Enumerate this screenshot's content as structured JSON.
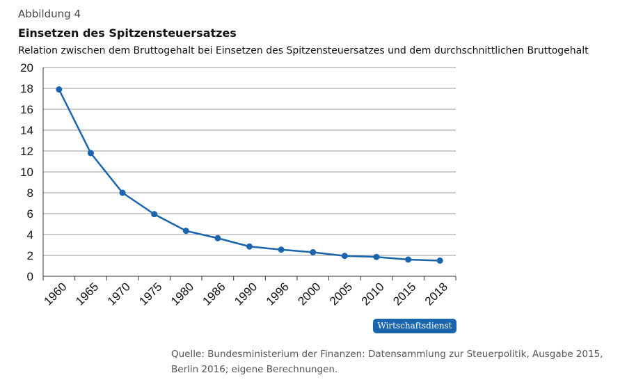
{
  "header": {
    "figure_label": "Abbildung 4",
    "title": "Einsetzen des Spitzensteuersatzes",
    "subtitle": "Relation zwischen dem Bruttogehalt bei Einsetzen des Spitzensteuersatzes und dem durchschnittlichen Bruttogehalt"
  },
  "badge": {
    "label": "Wirtschaftsdienst"
  },
  "source": {
    "text": "Quelle: Bundesministerium der Finanzen: Datensammlung zur Steuerpolitik, Ausgabe 2015, Berlin 2016; eigene Berechnungen."
  },
  "colors": {
    "line": "#1a65ad",
    "grid": "#999999",
    "badge": "#1a65ad"
  },
  "chart_data": {
    "type": "line",
    "title": "Einsetzen des Spitzensteuersatzes",
    "xlabel": "",
    "ylabel": "",
    "ylim": [
      0,
      20
    ],
    "yticks": [
      0,
      2,
      4,
      6,
      8,
      10,
      12,
      14,
      16,
      18,
      20
    ],
    "categories": [
      "1960",
      "1965",
      "1970",
      "1975",
      "1980",
      "1986",
      "1990",
      "1996",
      "2000",
      "2005",
      "2010",
      "2015",
      "2018"
    ],
    "series": [
      {
        "name": "Relation",
        "values": [
          17.9,
          11.8,
          8.0,
          5.95,
          4.35,
          3.65,
          2.85,
          2.55,
          2.3,
          1.95,
          1.85,
          1.6,
          1.5
        ]
      }
    ],
    "grid": true
  }
}
